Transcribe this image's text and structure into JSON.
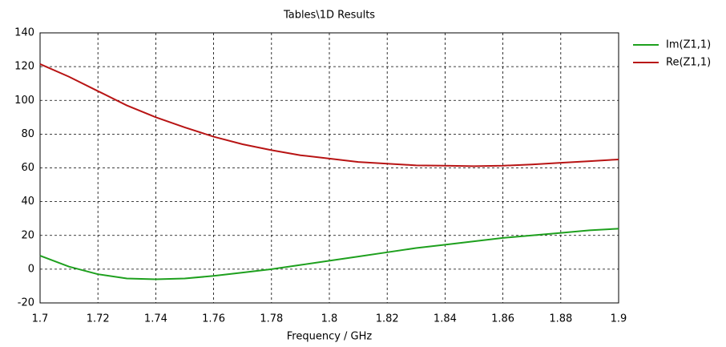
{
  "chart_data": {
    "type": "line",
    "title": "Tables\\1D Results",
    "x_label": "Frequency / GHz",
    "x": [
      1.7,
      1.71,
      1.72,
      1.73,
      1.74,
      1.75,
      1.76,
      1.77,
      1.78,
      1.79,
      1.8,
      1.81,
      1.82,
      1.83,
      1.84,
      1.85,
      1.86,
      1.87,
      1.88,
      1.89,
      1.9
    ],
    "series": [
      {
        "name": "Im(Z1,1)",
        "color": "#1ea01e",
        "values": [
          8,
          1.5,
          -3,
          -5.5,
          -6,
          -5.5,
          -4,
          -2,
          0,
          2.5,
          5,
          7.5,
          10,
          12.5,
          14.5,
          16.5,
          18.5,
          20,
          21.5,
          23,
          24
        ]
      },
      {
        "name": "Re(Z1,1)",
        "color": "#b81414",
        "values": [
          121.5,
          114,
          105.5,
          97,
          90,
          84,
          78.5,
          74,
          70.5,
          67.5,
          65.5,
          63.5,
          62.5,
          61.5,
          61.3,
          61,
          61.3,
          62,
          63,
          64,
          65
        ]
      }
    ],
    "xlim": [
      1.7,
      1.9
    ],
    "xticks": [
      1.7,
      1.72,
      1.74,
      1.76,
      1.78,
      1.8,
      1.82,
      1.84,
      1.86,
      1.88,
      1.9
    ],
    "ylim": [
      -20,
      140
    ],
    "yticks": [
      -20,
      0,
      20,
      40,
      60,
      80,
      100,
      120,
      140
    ],
    "grid": true,
    "legend": "top-right-outside"
  }
}
